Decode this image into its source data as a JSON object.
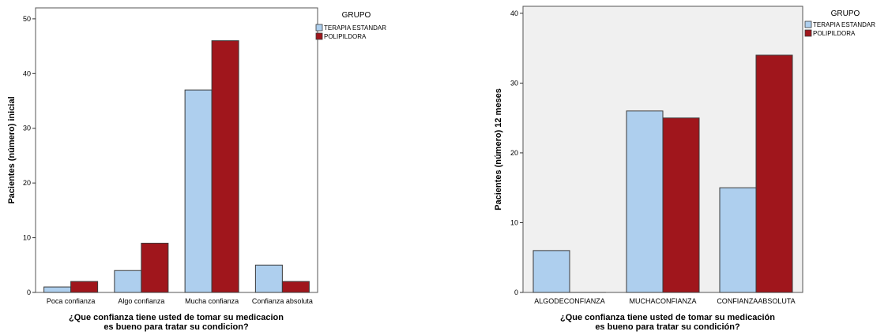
{
  "chart_data": [
    {
      "type": "bar",
      "title": "",
      "xlabel": "¿Que confianza tiene usted de tomar su medicacion es bueno para tratar su condicion?",
      "xlabel_lines": [
        "¿Que confianza tiene usted de tomar su medicacion",
        "es bueno para tratar su condicion?"
      ],
      "ylabel": "Pacientes (número) inicial",
      "ylim": [
        0,
        52
      ],
      "yticks": [
        0,
        10,
        20,
        30,
        40,
        50
      ],
      "grid": false,
      "plot_background": "#ffffff",
      "legend_position": "top-right",
      "legend_title": "GRUPO",
      "categories": [
        "Poca confianza",
        "Algo confianza",
        "Mucha confianza",
        "Confianza absoluta"
      ],
      "series": [
        {
          "name": "TERAPIA ESTANDAR",
          "color": "#aecfee",
          "values": [
            1,
            4,
            37,
            5
          ]
        },
        {
          "name": "POLIPILDORA",
          "color": "#a0161c",
          "values": [
            2,
            9,
            46,
            2
          ]
        }
      ]
    },
    {
      "type": "bar",
      "title": "",
      "xlabel": "¿Que confianza tiene usted de tomar su medicación es bueno para tratar su condición?",
      "xlabel_lines": [
        "¿Que confianza tiene usted de tomar su medicación",
        "es bueno para tratar su condición?"
      ],
      "ylabel": "Pacientes (número) 12 meses",
      "ylim": [
        0,
        41
      ],
      "yticks": [
        0,
        10,
        20,
        30,
        40
      ],
      "grid": false,
      "plot_background": "#f0f0f0",
      "legend_position": "top-right",
      "legend_title": "GRUPO",
      "categories": [
        "ALGODECONFIANZA",
        "MUCHACONFIANZA",
        "CONFIANZAABSOLUTA"
      ],
      "series": [
        {
          "name": "TERAPIA ESTANDAR",
          "color": "#aecfee",
          "values": [
            6,
            26,
            15
          ]
        },
        {
          "name": "POLIPILDORA",
          "color": "#a0161c",
          "values": [
            0,
            25,
            34
          ]
        }
      ]
    }
  ]
}
